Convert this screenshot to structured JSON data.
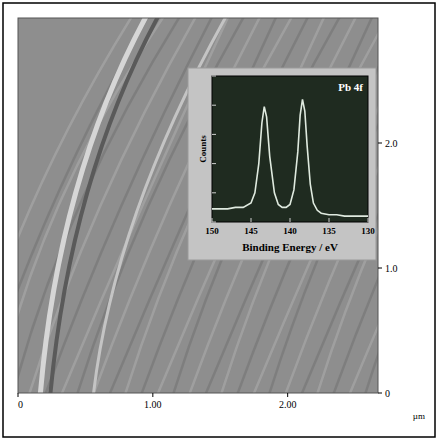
{
  "chart_data": [
    {
      "type": "image",
      "xlim": [
        0,
        2.67
      ],
      "xticks": [
        0,
        {
          "value": 1,
          "label": "1.00"
        },
        {
          "value": 2,
          "label": "2.00"
        }
      ],
      "ylim": [
        0,
        3.0
      ],
      "yticks": [
        0,
        {
          "value": 1,
          "label": "1.0"
        },
        {
          "value": 2,
          "label": "2.0"
        }
      ],
      "xlabel": "µm"
    },
    {
      "type": "line",
      "title": "Pb 4f",
      "xlabel": "Binding Energy / eV",
      "ylabel": "Counts",
      "x": [
        150,
        149,
        148,
        147,
        146,
        145,
        144.5,
        144,
        143.6,
        143.3,
        143,
        142.6,
        142,
        141.5,
        141,
        140.5,
        140,
        139.5,
        139,
        138.7,
        138.4,
        138.1,
        137.8,
        137.4,
        137,
        136.5,
        136,
        135,
        134,
        133,
        132,
        131,
        130
      ],
      "values": [
        0.9,
        0.9,
        0.9,
        1.0,
        1.0,
        1.3,
        2.0,
        4.0,
        6.8,
        7.9,
        7.2,
        4.5,
        2.0,
        1.2,
        1.0,
        1.0,
        1.2,
        2.2,
        4.8,
        7.3,
        8.4,
        7.6,
        5.2,
        2.6,
        1.3,
        0.8,
        0.6,
        0.5,
        0.5,
        0.4,
        0.4,
        0.4,
        0.4
      ],
      "color": "#dfeadf",
      "xlim": [
        150,
        130
      ],
      "xticks": [
        150,
        145,
        140,
        135,
        130
      ],
      "ylim": [
        0,
        10
      ],
      "yticks": [
        0,
        2,
        4,
        6,
        8,
        10
      ],
      "tick_labels": "x"
    }
  ]
}
